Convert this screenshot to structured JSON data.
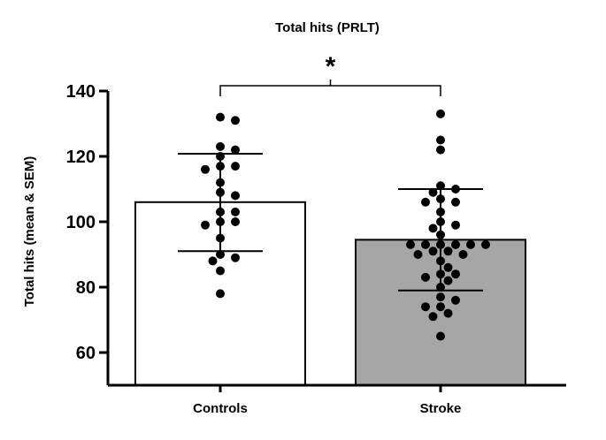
{
  "chart_data": {
    "type": "bar",
    "title": "Total hits (PRLT)",
    "ylabel": "Total hits (mean & SEM)",
    "xlabel": "",
    "ylim": [
      50,
      140
    ],
    "yticks": [
      60,
      80,
      100,
      120,
      140
    ],
    "categories": [
      "Controls",
      "Stroke"
    ],
    "bar_colors": [
      "#ffffff",
      "#a6a6a6"
    ],
    "series": [
      {
        "values": [
          106,
          94.5
        ],
        "error_low": [
          91,
          79
        ],
        "error_high": [
          120.8,
          110
        ]
      }
    ],
    "individual_points": [
      [
        132,
        131,
        123,
        122,
        120,
        117,
        117,
        116,
        112,
        109,
        108,
        103,
        103,
        100,
        100,
        99,
        95,
        90,
        89,
        88,
        85,
        78
      ],
      [
        133,
        125,
        122,
        111,
        110,
        109,
        107,
        106,
        106,
        103,
        100,
        99,
        98,
        96,
        93,
        93,
        93,
        93,
        93,
        93,
        91,
        91,
        90,
        90,
        88,
        86,
        84,
        84,
        83,
        82,
        80,
        77,
        76,
        74,
        74,
        72,
        71,
        65
      ]
    ],
    "significance": {
      "pair": [
        "Controls",
        "Stroke"
      ],
      "label": "*"
    },
    "grid": false,
    "legend": "none"
  }
}
